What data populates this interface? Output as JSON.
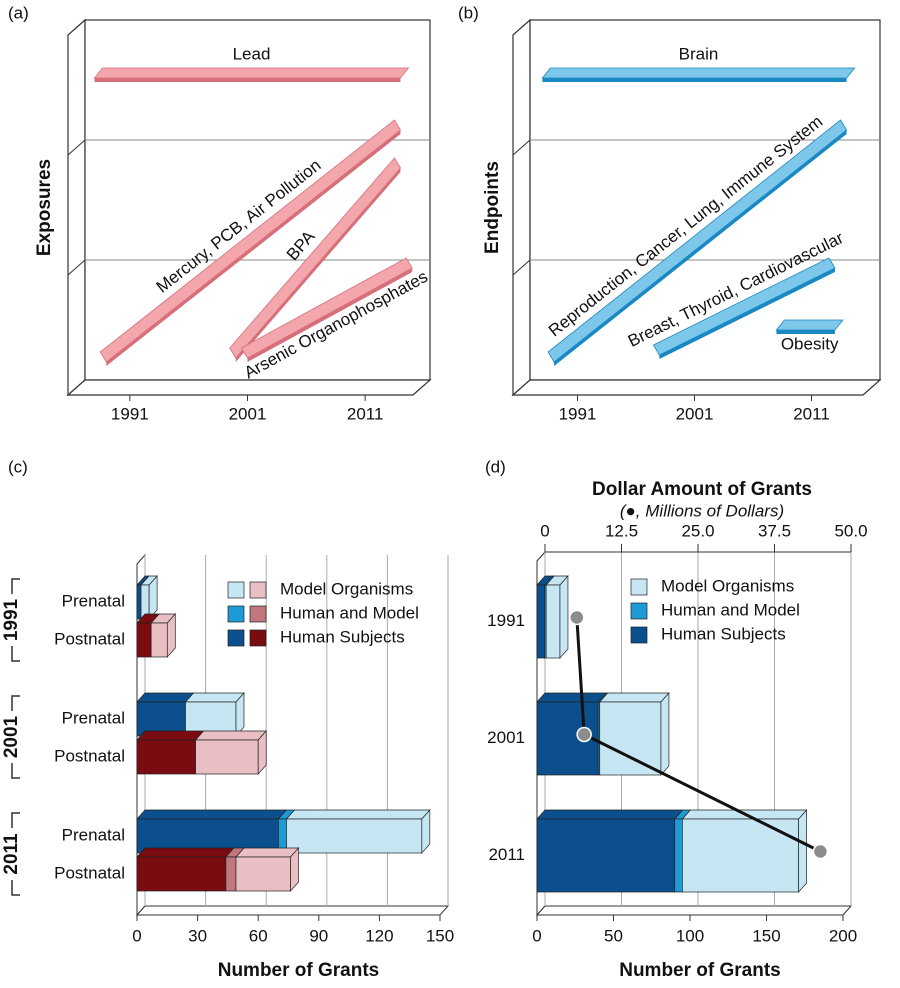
{
  "chart_data": [
    {
      "type": "ribbon",
      "panel_label": "(a)",
      "ylabel": "Exposures",
      "xlim": [
        1986,
        2016
      ],
      "xticks": [
        1991,
        2001,
        2011
      ],
      "color": "#f4a6ad",
      "edge_color": "#d66f7a",
      "series": [
        {
          "name": "Lead",
          "x": [
            1988,
            2014
          ]
        },
        {
          "name": "Mercury, PCB, Air Pollution",
          "x": [
            1989,
            2014
          ]
        },
        {
          "name": "BPA",
          "x": [
            2000,
            2014
          ]
        },
        {
          "name": "Arsenic Organophosphates",
          "x": [
            2001,
            2015
          ]
        }
      ]
    },
    {
      "type": "ribbon",
      "panel_label": "(b)",
      "ylabel": "Endpoints",
      "xlim": [
        1986,
        2016
      ],
      "xticks": [
        1991,
        2001,
        2011
      ],
      "color": "#7dc8ea",
      "edge_color": "#1a88c2",
      "series": [
        {
          "name": "Brain",
          "x": [
            1988,
            2014
          ]
        },
        {
          "name": "Reproduction, Cancer, Lung, Immune System",
          "x": [
            1989,
            2014
          ]
        },
        {
          "name": "Breast, Thyroid, Cardiovascular",
          "x": [
            1998,
            2013
          ]
        },
        {
          "name": "Obesity",
          "x": [
            2008,
            2013
          ]
        }
      ]
    },
    {
      "type": "bar3d",
      "panel_label": "(c)",
      "xlabel": "Number of Grants",
      "groups": [
        "1991",
        "2001",
        "2011"
      ],
      "categories": [
        "Prenatal",
        "Postnatal",
        "Prenatal",
        "Postnatal",
        "Prenatal",
        "Postnatal"
      ],
      "xlim": [
        0,
        150
      ],
      "xticks": [
        0,
        30,
        60,
        90,
        120,
        150
      ],
      "grid": true,
      "legend": "upper right",
      "series": [
        {
          "name": "Human Subjects",
          "colors": [
            "#0b4f8c",
            "#7a0b10"
          ],
          "values": [
            2,
            7,
            24,
            29,
            70,
            44
          ]
        },
        {
          "name": "Human and Model",
          "colors": [
            "#1e9bd7",
            "#c0787e"
          ],
          "values": [
            0,
            0,
            0,
            0,
            4,
            5
          ]
        },
        {
          "name": "Model Organisms",
          "colors": [
            "#c7e6f4",
            "#e9bfc4"
          ],
          "values": [
            4,
            8,
            25,
            31,
            67,
            27
          ]
        }
      ]
    },
    {
      "type": "bar3d",
      "panel_label": "(d)",
      "xlabel": "Number of Grants",
      "title": "Dollar Amount of Grants",
      "subtitle": "(●, Millions of Dollars)",
      "categories": [
        "1991",
        "2001",
        "2011"
      ],
      "xlim": [
        0,
        200
      ],
      "xticks": [
        0,
        50,
        100,
        150,
        200
      ],
      "x2lim": [
        0,
        50
      ],
      "x2ticks": [
        0,
        12.5,
        {
          "value": 25,
          "label": "25.0"
        },
        37.5,
        {
          "value": 50,
          "label": "50.0"
        }
      ],
      "grid": true,
      "legend": "upper right",
      "series": [
        {
          "name": "Human Subjects",
          "color": "#0b4f8c",
          "values": [
            5,
            40,
            90
          ]
        },
        {
          "name": "Human and Model",
          "color": "#1e9bd7",
          "values": [
            1,
            1,
            5
          ]
        },
        {
          "name": "Model Organisms",
          "color": "#c7e6f4",
          "values": [
            9,
            40,
            76
          ]
        }
      ],
      "line": {
        "axis": "x2",
        "color": "#8c8c8c",
        "values": [
          5.2,
          6.4,
          45
        ]
      }
    }
  ]
}
